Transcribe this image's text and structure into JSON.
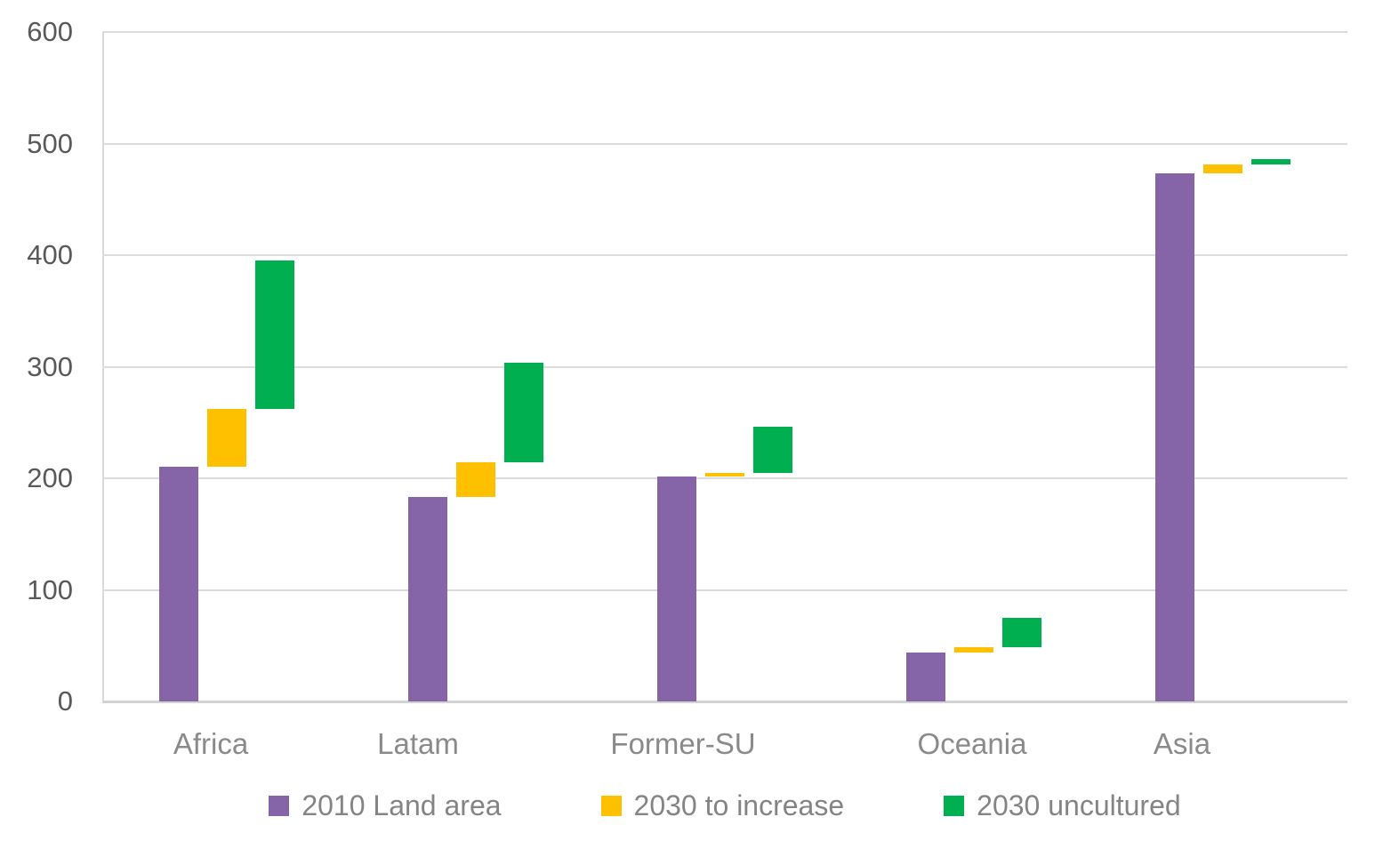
{
  "chart_data": {
    "type": "bar",
    "subtype": "floating-column-waterfall",
    "title": "",
    "xlabel": "",
    "ylabel": "",
    "categories": [
      "Africa",
      "Latam",
      "Former-SU",
      "Oceania",
      "Asia"
    ],
    "series": [
      {
        "name": "2010 Land area",
        "color": "#8565A8",
        "ranges": [
          [
            0,
            210
          ],
          [
            0,
            183
          ],
          [
            0,
            202
          ],
          [
            0,
            44
          ],
          [
            0,
            473
          ]
        ]
      },
      {
        "name": "2030 to increase",
        "color": "#FFC000",
        "ranges": [
          [
            210,
            262
          ],
          [
            183,
            214
          ],
          [
            202,
            205
          ],
          [
            44,
            49
          ],
          [
            473,
            481
          ]
        ]
      },
      {
        "name": "2030 uncultured",
        "color": "#00B050",
        "ranges": [
          [
            262,
            395
          ],
          [
            214,
            304
          ],
          [
            205,
            246
          ],
          [
            49,
            75
          ],
          [
            481,
            486
          ]
        ]
      }
    ],
    "ylim": [
      0,
      600
    ],
    "yticks": [
      0,
      100,
      200,
      300,
      400,
      500,
      600
    ],
    "grid": true,
    "legend_position": "bottom"
  },
  "colors": {
    "background": "#FFFFFF",
    "gridline": "#DCDCDC",
    "axis_line": "#D9D9D9",
    "tick_label": "#595959",
    "category_label": "#8A8A8A",
    "legend_label": "#848484"
  }
}
